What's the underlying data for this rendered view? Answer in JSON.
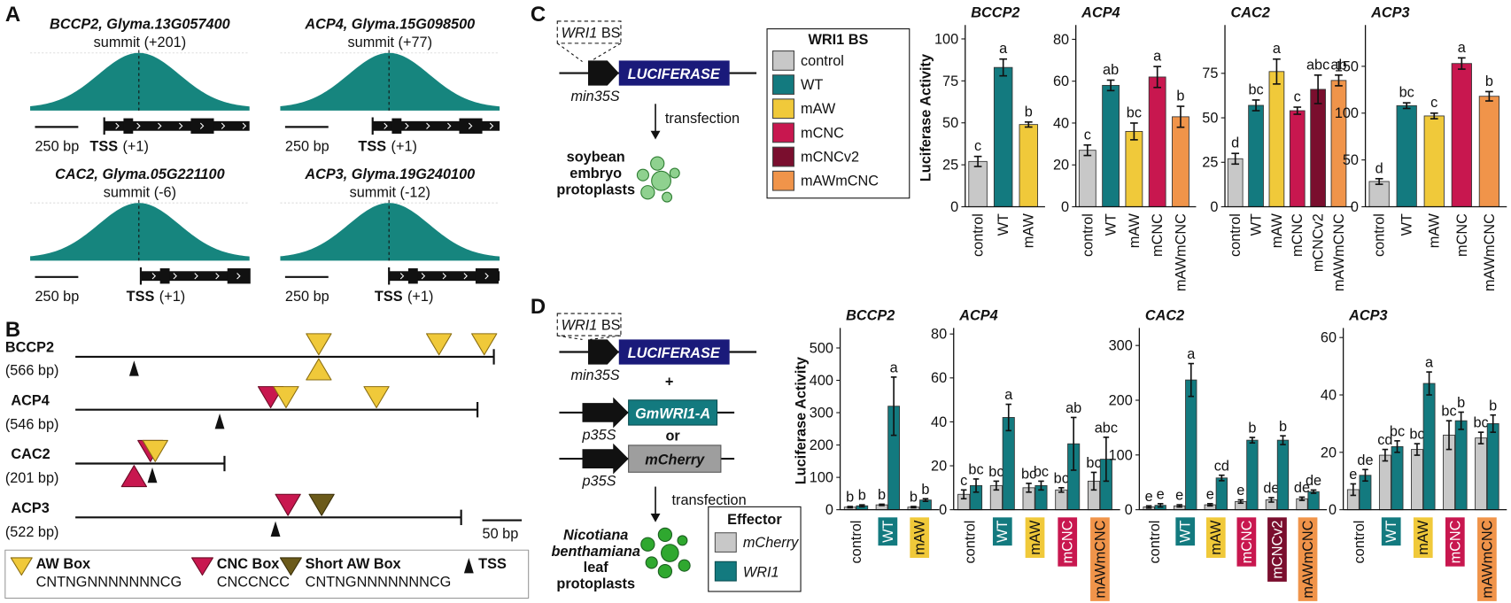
{
  "panel_labels": [
    "A",
    "B",
    "C",
    "D"
  ],
  "panel_a": {
    "tracks": [
      {
        "title": "BCCP2, Glyma.13G057400",
        "summit": "summit (+201)",
        "scale": "250 bp",
        "tss": "TSS",
        "tss_pos": "(+1)"
      },
      {
        "title": "ACP4, Glyma.15G098500",
        "summit": "summit (+77)",
        "scale": "250 bp",
        "tss": "TSS",
        "tss_pos": "(+1)"
      },
      {
        "title": "CAC2, Glyma.05G221100",
        "summit": "summit (-6)",
        "scale": "250 bp",
        "tss": "TSS",
        "tss_pos": "(+1)"
      },
      {
        "title": "ACP3, Glyma.19G240100",
        "summit": "summit (-12)",
        "scale": "250 bp",
        "tss": "TSS",
        "tss_pos": "(+1)"
      }
    ]
  },
  "panel_b": {
    "genes": [
      {
        "name": "BCCP2",
        "length": "(566 bp)"
      },
      {
        "name": "ACP4",
        "length": "(546 bp)"
      },
      {
        "name": "CAC2",
        "length": "(201 bp)"
      },
      {
        "name": "ACP3",
        "length": "(522 bp)"
      }
    ],
    "scale": "50 bp",
    "legend": [
      {
        "label": "AW Box",
        "motif": "CNTNGNNNNNNNCG"
      },
      {
        "label": "CNC Box",
        "motif": "CNCCNCC"
      },
      {
        "label": "Short AW Box",
        "motif": "CNTNGNNNNNNNCG"
      },
      {
        "label": "TSS"
      }
    ]
  },
  "panel_c": {
    "bs_gene": "WRI1",
    "bs_suffix": "BS",
    "reporter": "LUCIFERASE",
    "promoter": "min35S",
    "step": "transfection",
    "cells": [
      "soybean",
      "embryo",
      "protoplasts"
    ],
    "legend_gene": "WRI1",
    "legend_suffix": "BS",
    "legend": [
      {
        "name": "control",
        "color": "#c8c8c8"
      },
      {
        "name": "WT",
        "color": "#137a7f"
      },
      {
        "name": "mAW",
        "color": "#f0c93a"
      },
      {
        "name": "mCNC",
        "color": "#c8174f"
      },
      {
        "name": "mCNCv2",
        "color": "#7a0e2e"
      },
      {
        "name": "mAWmCNC",
        "color": "#f0944a"
      }
    ]
  },
  "panel_d": {
    "bs_gene": "WRI1",
    "bs_suffix": "BS",
    "reporter": "LUCIFERASE",
    "promoter": "min35S",
    "plus": "+",
    "effector1": "GmWRI1-A",
    "promoter1": "p35S",
    "or": "or",
    "effector2": "mCherry",
    "promoter2": "p35S",
    "step": "transfection",
    "cells": [
      "Nicotiana",
      "benthamiana",
      "leaf",
      "protoplasts"
    ],
    "legend_title": "Effector"
  },
  "chart_data": [
    {
      "type": "bar",
      "title": "BCCP2",
      "ylabel": "Luciferase Activity",
      "categories": [
        "control",
        "WT",
        "mAW"
      ],
      "values": [
        27,
        83,
        49
      ],
      "errors": [
        3,
        5,
        1.5
      ],
      "letters": [
        "c",
        "a",
        "b"
      ],
      "colors": [
        "#c8c8c8",
        "#137a7f",
        "#f0c93a"
      ],
      "ylim": [
        0,
        106
      ],
      "yticks": [
        0,
        25,
        50,
        75,
        100
      ]
    },
    {
      "type": "bar",
      "title": "ACP4",
      "categories": [
        "control",
        "WT",
        "mAW",
        "mCNC",
        "mAWmCNC"
      ],
      "values": [
        27,
        58,
        36,
        62,
        43
      ],
      "errors": [
        2.5,
        2.5,
        4,
        5,
        5
      ],
      "letters": [
        "c",
        "ab",
        "bc",
        "a",
        "b"
      ],
      "colors": [
        "#c8c8c8",
        "#137a7f",
        "#f0c93a",
        "#c8174f",
        "#f0944a"
      ],
      "ylim": [
        0,
        85
      ],
      "yticks": [
        0,
        20,
        40,
        60,
        80
      ]
    },
    {
      "type": "bar",
      "title": "CAC2",
      "categories": [
        "control",
        "WT",
        "mAW",
        "mCNC",
        "mCNCv2",
        "mAWmCNC"
      ],
      "values": [
        27,
        57,
        76,
        54,
        66,
        71
      ],
      "errors": [
        3,
        3,
        7,
        2,
        8,
        3
      ],
      "letters": [
        "d",
        "bc",
        "a",
        "c",
        "abc",
        "ab"
      ],
      "colors": [
        "#c8c8c8",
        "#137a7f",
        "#f0c93a",
        "#c8174f",
        "#7a0e2e",
        "#f0944a"
      ],
      "ylim": [
        0,
        100
      ],
      "yticks": [
        0,
        25,
        50,
        75
      ]
    },
    {
      "type": "bar",
      "title": "ACP3",
      "categories": [
        "control",
        "WT",
        "mAW",
        "mCNC",
        "mAWmCNC"
      ],
      "values": [
        27,
        108,
        97,
        153,
        118
      ],
      "errors": [
        3,
        3,
        3,
        6,
        5
      ],
      "letters": [
        "d",
        "bc",
        "c",
        "a",
        "b"
      ],
      "colors": [
        "#c8c8c8",
        "#137a7f",
        "#f0c93a",
        "#c8174f",
        "#f0944a"
      ],
      "ylim": [
        0,
        190
      ],
      "yticks": [
        0,
        50,
        100,
        150
      ]
    },
    {
      "type": "grouped_bar",
      "title": "BCCP2",
      "ylabel": "Luciferase Activity",
      "categories": [
        "control",
        "WT",
        "mAW"
      ],
      "category_colors": [
        null,
        "#137a7f",
        "#f0c93a"
      ],
      "series": [
        {
          "name": "mCherry",
          "color": "#c8c8c8",
          "values": [
            8,
            15,
            8
          ],
          "errors": [
            2,
            2,
            2
          ],
          "letters": [
            "b",
            "b",
            "b"
          ]
        },
        {
          "name": "WRI1",
          "color": "#137a7f",
          "values": [
            12,
            320,
            30
          ],
          "errors": [
            3,
            90,
            4
          ],
          "letters": [
            "b",
            "a",
            "b"
          ]
        }
      ],
      "ylim": [
        0,
        550
      ],
      "yticks": [
        0,
        100,
        200,
        300,
        400,
        500
      ]
    },
    {
      "type": "grouped_bar",
      "title": "ACP4",
      "categories": [
        "control",
        "WT",
        "mAW",
        "mCNC",
        "mAWmCNC"
      ],
      "category_colors": [
        null,
        "#137a7f",
        "#f0c93a",
        "#c8174f",
        "#f0944a"
      ],
      "series": [
        {
          "name": "mCherry",
          "color": "#c8c8c8",
          "values": [
            7,
            11,
            10,
            9,
            13
          ],
          "errors": [
            2,
            2,
            2,
            1,
            4
          ],
          "letters": [
            "c",
            "bc",
            "bc",
            "bc",
            "bc"
          ]
        },
        {
          "name": "WRI1",
          "color": "#137a7f",
          "values": [
            11,
            42,
            11,
            30,
            23
          ],
          "errors": [
            3,
            6,
            2,
            12,
            10
          ],
          "letters": [
            "bc",
            "a",
            "bc",
            "ab",
            "abc"
          ]
        }
      ],
      "ylim": [
        0,
        81
      ],
      "yticks": [
        0,
        20,
        40,
        60,
        80
      ]
    },
    {
      "type": "grouped_bar",
      "title": "CAC2",
      "categories": [
        "control",
        "WT",
        "mAW",
        "mCNC",
        "mCNCv2",
        "mAWmCNC"
      ],
      "category_colors": [
        null,
        "#137a7f",
        "#f0c93a",
        "#c8174f",
        "#7a0e2e",
        "#f0944a"
      ],
      "series": [
        {
          "name": "mCherry",
          "color": "#c8c8c8",
          "values": [
            5,
            7,
            9,
            15,
            18,
            20
          ],
          "errors": [
            2,
            2,
            2,
            3,
            4,
            3
          ],
          "letters": [
            "e",
            "e",
            "e",
            "e",
            "de",
            "de"
          ]
        },
        {
          "name": "WRI1",
          "color": "#137a7f",
          "values": [
            8,
            237,
            58,
            127,
            127,
            33
          ],
          "errors": [
            3,
            30,
            5,
            5,
            8,
            3
          ],
          "letters": [
            "e",
            "a",
            "cd",
            "b",
            "b",
            "de"
          ]
        }
      ],
      "ylim": [
        0,
        325
      ],
      "yticks": [
        0,
        100,
        200,
        300
      ]
    },
    {
      "type": "grouped_bar",
      "title": "ACP3",
      "categories": [
        "control",
        "WT",
        "mAW",
        "mCNC",
        "mAWmCNC"
      ],
      "category_colors": [
        null,
        "#137a7f",
        "#f0c93a",
        "#c8174f",
        "#f0944a"
      ],
      "series": [
        {
          "name": "mCherry",
          "color": "#c8c8c8",
          "values": [
            7,
            19,
            21,
            26,
            25
          ],
          "errors": [
            2,
            2,
            2,
            5,
            2
          ],
          "letters": [
            "e",
            "cd",
            "bc",
            "bc",
            "bc"
          ]
        },
        {
          "name": "WRI1",
          "color": "#137a7f",
          "values": [
            12,
            22,
            44,
            31,
            30
          ],
          "errors": [
            2,
            2,
            4,
            3,
            3
          ],
          "letters": [
            "de",
            "bc",
            "a",
            "b",
            "b"
          ]
        }
      ],
      "ylim": [
        0,
        62
      ],
      "yticks": [
        0,
        20,
        40,
        60
      ]
    }
  ]
}
